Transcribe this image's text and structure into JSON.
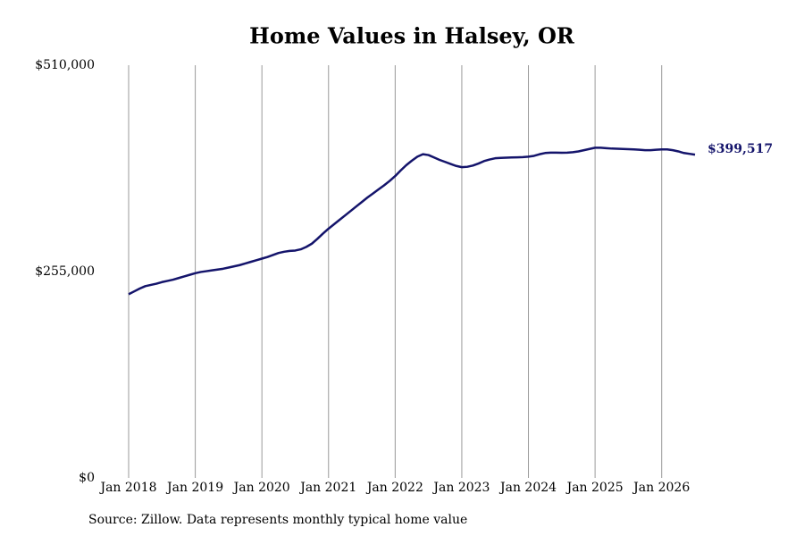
{
  "chart_data": {
    "type": "line",
    "title": "Home Values in Halsey, OR",
    "source": "Source: Zillow. Data represents monthly typical home value",
    "color": "#14146b",
    "x": [
      "2018-01",
      "2018-02",
      "2018-03",
      "2018-04",
      "2018-05",
      "2018-06",
      "2018-07",
      "2018-08",
      "2018-09",
      "2018-10",
      "2018-11",
      "2018-12",
      "2019-01",
      "2019-02",
      "2019-03",
      "2019-04",
      "2019-05",
      "2019-06",
      "2019-07",
      "2019-08",
      "2019-09",
      "2019-10",
      "2019-11",
      "2019-12",
      "2020-01",
      "2020-02",
      "2020-03",
      "2020-04",
      "2020-05",
      "2020-06",
      "2020-07",
      "2020-08",
      "2020-09",
      "2020-10",
      "2020-11",
      "2020-12",
      "2021-01",
      "2021-02",
      "2021-03",
      "2021-04",
      "2021-05",
      "2021-06",
      "2021-07",
      "2021-08",
      "2021-09",
      "2021-10",
      "2021-11",
      "2021-12",
      "2022-01",
      "2022-02",
      "2022-03",
      "2022-04",
      "2022-05",
      "2022-06",
      "2022-07",
      "2022-08",
      "2022-09",
      "2022-10",
      "2022-11",
      "2022-12",
      "2023-01",
      "2023-02",
      "2023-03",
      "2023-04",
      "2023-05",
      "2023-06",
      "2023-07",
      "2023-08",
      "2023-09",
      "2023-10",
      "2023-11",
      "2023-12",
      "2024-01",
      "2024-02",
      "2024-03",
      "2024-04",
      "2024-05",
      "2024-06",
      "2024-07",
      "2024-08",
      "2024-09",
      "2024-10",
      "2024-11",
      "2024-12",
      "2025-01",
      "2025-02",
      "2025-03",
      "2025-04",
      "2025-05",
      "2025-06",
      "2025-07",
      "2025-08",
      "2025-09",
      "2025-10",
      "2025-11",
      "2025-12",
      "2026-01",
      "2026-02",
      "2026-03",
      "2026-04",
      "2026-05",
      "2026-06",
      "2026-07"
    ],
    "values": [
      227000,
      230500,
      234000,
      237000,
      238500,
      240000,
      242000,
      243500,
      245000,
      247000,
      249000,
      251000,
      253000,
      254500,
      255500,
      256500,
      257500,
      258500,
      260000,
      261500,
      263000,
      265000,
      267000,
      269000,
      271000,
      273000,
      275500,
      278000,
      279500,
      280500,
      281000,
      282500,
      285500,
      289500,
      295500,
      302000,
      308000,
      313500,
      319000,
      324500,
      330000,
      335500,
      341000,
      346500,
      351500,
      356500,
      361500,
      367000,
      373000,
      380000,
      386500,
      392000,
      397000,
      400000,
      399000,
      396000,
      393000,
      390500,
      388000,
      385500,
      384000,
      384500,
      386000,
      388500,
      391500,
      393500,
      395000,
      395500,
      395800,
      396000,
      396200,
      396500,
      397000,
      398000,
      400000,
      401500,
      402000,
      402000,
      401800,
      402000,
      402500,
      403500,
      405000,
      406500,
      408000,
      408000,
      407500,
      407000,
      406800,
      406500,
      406200,
      406000,
      405500,
      405000,
      405000,
      405500,
      406000,
      406000,
      405000,
      403500,
      401500,
      400500,
      399517
    ],
    "value_labels": [
      null,
      null,
      null,
      null,
      null,
      null,
      null,
      null,
      null,
      null,
      null,
      null,
      null,
      null,
      null,
      null,
      null,
      null,
      null,
      null,
      null,
      null,
      null,
      null,
      null,
      null,
      null,
      null,
      null,
      null,
      null,
      null,
      null,
      null,
      null,
      null,
      null,
      null,
      null,
      null,
      null,
      null,
      null,
      null,
      null,
      null,
      null,
      null,
      null,
      null,
      null,
      null,
      null,
      null,
      null,
      null,
      null,
      null,
      null,
      null,
      null,
      null,
      null,
      null,
      null,
      null,
      null,
      null,
      null,
      null,
      null,
      null,
      null,
      null,
      null,
      null,
      null,
      null,
      null,
      null,
      null,
      null,
      null,
      null,
      null,
      null,
      null,
      null,
      null,
      null,
      null,
      null,
      null,
      null,
      null,
      null,
      null,
      null,
      null,
      null,
      null,
      null,
      "$399,517"
    ],
    "xlim": [
      "2018-01",
      "2026-07"
    ],
    "xticks": [
      {
        "value": "2018-01",
        "label": "Jan 2018"
      },
      {
        "value": "2019-01",
        "label": "Jan 2019"
      },
      {
        "value": "2020-01",
        "label": "Jan 2020"
      },
      {
        "value": "2021-01",
        "label": "Jan 2021"
      },
      {
        "value": "2022-01",
        "label": "Jan 2022"
      },
      {
        "value": "2023-01",
        "label": "Jan 2023"
      },
      {
        "value": "2024-01",
        "label": "Jan 2024"
      },
      {
        "value": "2025-01",
        "label": "Jan 2025"
      },
      {
        "value": "2026-01",
        "label": "Jan 2026"
      }
    ],
    "ylim": [
      0,
      510000
    ],
    "yticks": [
      {
        "value": 0,
        "label": "$0"
      },
      {
        "value": 255000,
        "label": "$255,000"
      },
      {
        "value": 510000,
        "label": "$510,000"
      }
    ],
    "grid": "x"
  }
}
